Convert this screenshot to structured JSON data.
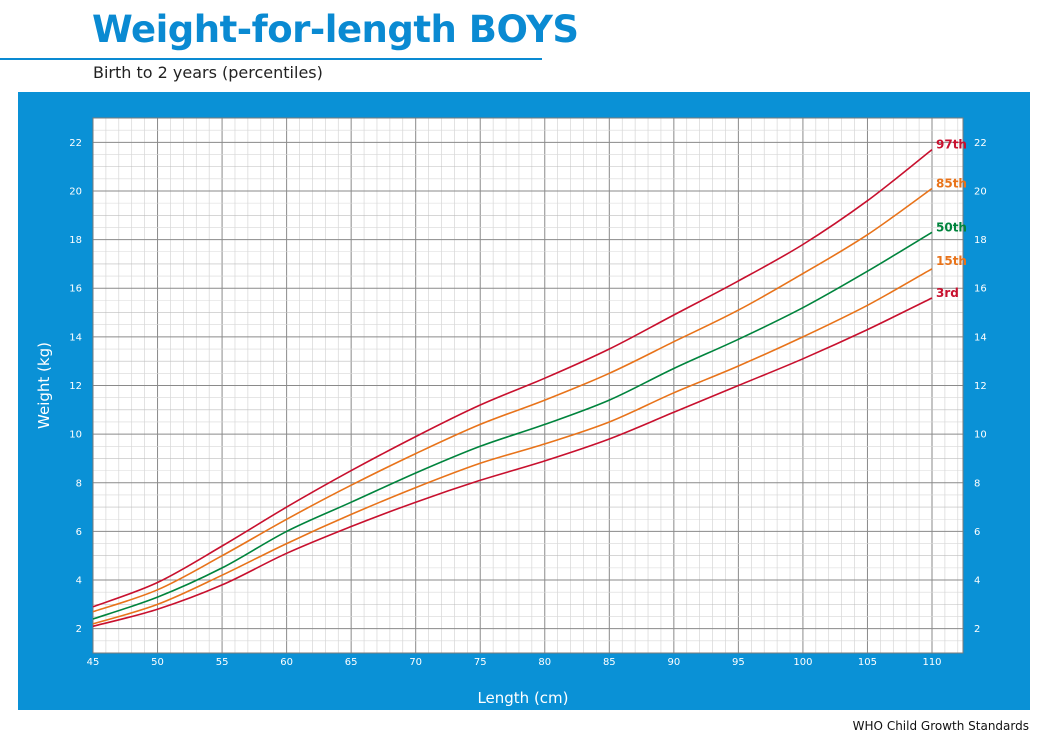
{
  "header": {
    "title": "Weight-for-length BOYS",
    "subtitle": "Birth to 2 years (percentiles)"
  },
  "footer": {
    "source": "WHO Child Growth Standards"
  },
  "colors": {
    "panel": "#0a91d6",
    "brand": "#0a8ad2",
    "p97": "#c8102e",
    "p85": "#e8731a",
    "p50": "#00843d",
    "p15": "#e8731a",
    "p3": "#c8102e"
  },
  "chart_data": {
    "type": "line",
    "xlabel": "Length (cm)",
    "ylabel": "Weight (kg)",
    "xlim": [
      45,
      110
    ],
    "ylim": [
      1,
      23
    ],
    "x_ticks": [
      45,
      50,
      55,
      60,
      65,
      70,
      75,
      80,
      85,
      90,
      95,
      100,
      105,
      110
    ],
    "y_ticks": [
      2,
      4,
      6,
      8,
      10,
      12,
      14,
      16,
      18,
      20,
      22
    ],
    "grid": true,
    "x": [
      45,
      50,
      55,
      60,
      65,
      70,
      75,
      80,
      85,
      90,
      95,
      100,
      105,
      110
    ],
    "series": [
      {
        "name": "97th",
        "color": "#c8102e",
        "values": [
          2.9,
          3.9,
          5.4,
          7.0,
          8.5,
          9.9,
          11.2,
          12.3,
          13.5,
          14.9,
          16.3,
          17.8,
          19.6,
          21.7
        ]
      },
      {
        "name": "85th",
        "color": "#e8731a",
        "values": [
          2.7,
          3.6,
          5.0,
          6.5,
          7.9,
          9.2,
          10.4,
          11.4,
          12.5,
          13.8,
          15.1,
          16.6,
          18.2,
          20.1
        ]
      },
      {
        "name": "50th",
        "color": "#00843d",
        "values": [
          2.4,
          3.3,
          4.5,
          6.0,
          7.2,
          8.4,
          9.5,
          10.4,
          11.4,
          12.7,
          13.9,
          15.2,
          16.7,
          18.3
        ]
      },
      {
        "name": "15th",
        "color": "#e8731a",
        "values": [
          2.2,
          3.0,
          4.2,
          5.5,
          6.7,
          7.8,
          8.8,
          9.6,
          10.5,
          11.7,
          12.8,
          14.0,
          15.3,
          16.8
        ]
      },
      {
        "name": "3rd",
        "color": "#c8102e",
        "values": [
          2.1,
          2.8,
          3.8,
          5.1,
          6.2,
          7.2,
          8.1,
          8.9,
          9.8,
          10.9,
          12.0,
          13.1,
          14.3,
          15.6
        ]
      }
    ]
  }
}
